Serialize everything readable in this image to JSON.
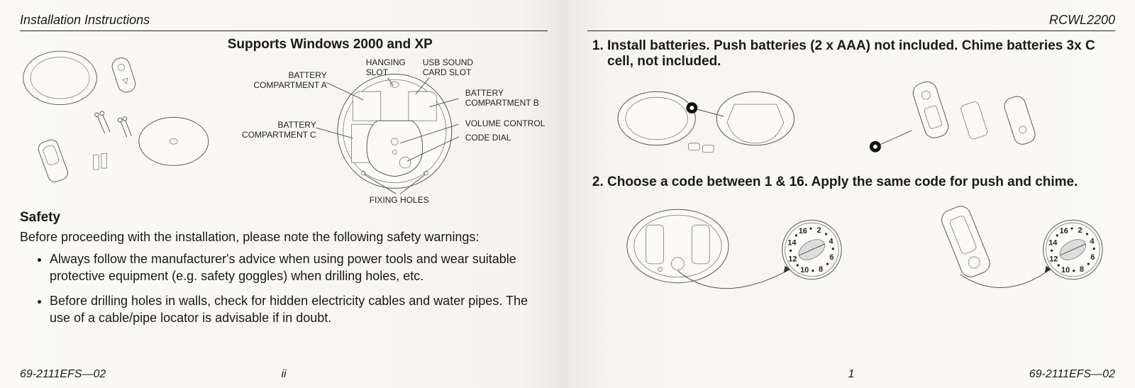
{
  "left": {
    "header": "Installation Instructions",
    "diagram_title": "Supports Windows 2000 and XP",
    "labels": {
      "battery_a": "BATTERY COMPARTMENT A",
      "hanging": "HANGING SLOT",
      "usb": "USB SOUND CARD SLOT",
      "battery_b": "BATTERY COMPARTMENT B",
      "battery_c": "BATTERY COMPARTMENT C",
      "volume": "VOLUME CONTROL",
      "code_dial": "CODE DIAL",
      "fixing": "FIXING HOLES"
    },
    "safety_heading": "Safety",
    "safety_intro": "Before proceeding with the installation, please note the following safety warnings:",
    "safety_items": [
      "Always follow the manufacturer's advice when using power tools and wear suitable protective equipment (e.g. safety goggles) when drilling holes, etc.",
      "Before drilling holes in walls, check for hidden electricity cables and water pipes. The use of a cable/pipe locator is advisable if in doubt."
    ],
    "doc_no": "69-2111EFS—02",
    "page_no": "ii"
  },
  "right": {
    "header": "RCWL2200",
    "steps": [
      "Install batteries. Push batteries (2 x AAA) not included. Chime batteries 3x C cell, not included.",
      "Choose a code between 1 & 16. Apply the same code for push and chime."
    ],
    "dial_numbers": [
      "2",
      "4",
      "6",
      "8",
      "10",
      "12",
      "14",
      "16"
    ],
    "doc_no": "69-2111EFS—02",
    "page_no": "1"
  }
}
